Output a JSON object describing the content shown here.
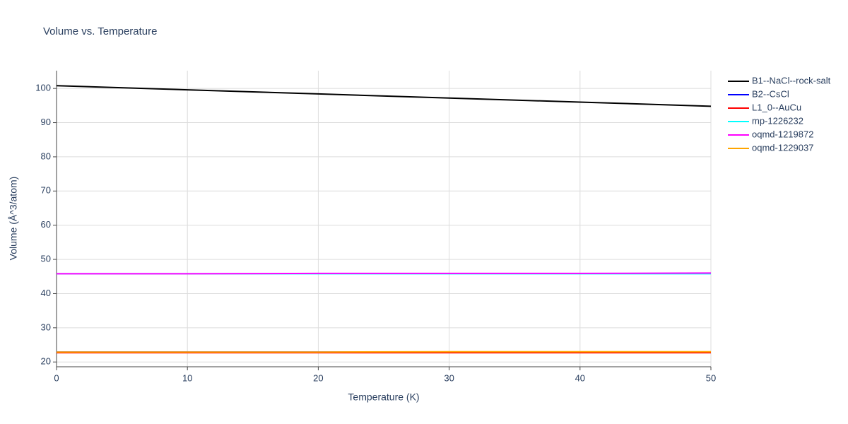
{
  "chart_data": {
    "type": "line",
    "title": "Volume vs. Temperature",
    "x_label": "Temperature (K)",
    "y_label": "Volume (Å^3/atom)",
    "x": [
      0,
      10,
      20,
      30,
      40,
      50
    ],
    "series": [
      {
        "name": "B1--NaCl--rock-salt",
        "color": "#000000",
        "values": [
          100.8,
          99.6,
          98.4,
          97.2,
          96.0,
          94.8
        ]
      },
      {
        "name": "B2--CsCl",
        "color": "#0000ff",
        "values": [
          22.9,
          22.9,
          22.9,
          22.9,
          22.9,
          22.9
        ]
      },
      {
        "name": "L1_0--AuCu",
        "color": "#ff0000",
        "values": [
          22.7,
          22.7,
          22.7,
          22.7,
          22.7,
          22.7
        ]
      },
      {
        "name": "mp-1226232",
        "color": "#00ffff",
        "values": [
          45.8,
          45.8,
          45.8,
          45.8,
          45.8,
          45.8
        ]
      },
      {
        "name": "oqmd-1219872",
        "color": "#ff00ff",
        "values": [
          45.8,
          45.8,
          45.9,
          45.9,
          45.9,
          46.0
        ]
      },
      {
        "name": "oqmd-1229037",
        "color": "#ffa500",
        "values": [
          22.9,
          22.9,
          22.9,
          23.0,
          23.0,
          23.0
        ]
      }
    ],
    "xlim": [
      0,
      50
    ],
    "xticks": [
      0,
      10,
      20,
      30,
      40,
      50
    ],
    "ylim": [
      18.6,
      105.2
    ],
    "yticks": [
      20,
      30,
      40,
      50,
      60,
      70,
      80,
      90,
      100
    ],
    "grid": true,
    "legend": "right"
  }
}
